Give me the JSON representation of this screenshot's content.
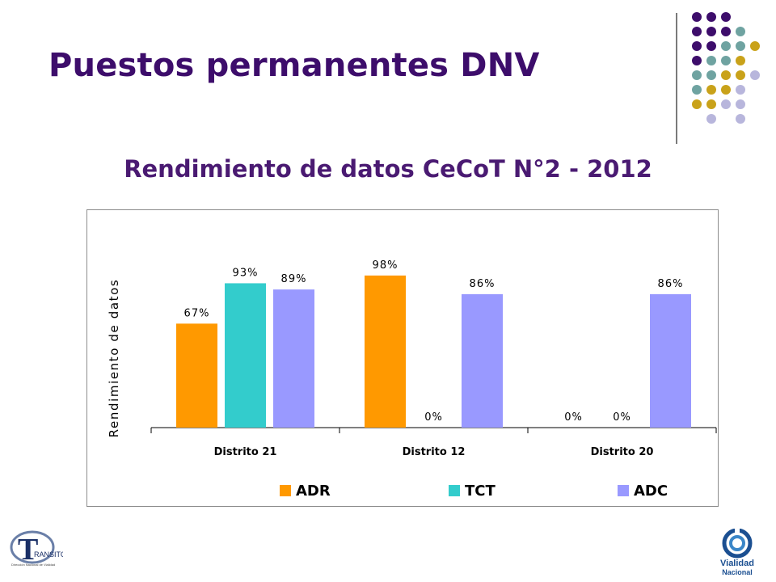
{
  "slide": {
    "title": "Puestos permanentes DNV"
  },
  "colors": {
    "title": "#3d0d6b",
    "dot_purple": "#3d0d6b",
    "dot_teal": "#6fa3a1",
    "dot_gold": "#c9a21a",
    "dot_lavender": "#b8b6dc"
  },
  "decor": {
    "dot_grid_rows": [
      [
        "purple",
        "purple",
        "purple",
        null,
        null
      ],
      [
        "purple",
        "purple",
        "purple",
        "teal",
        null
      ],
      [
        "purple",
        "purple",
        "teal",
        "teal",
        "gold"
      ],
      [
        "purple",
        "teal",
        "teal",
        "gold",
        null
      ],
      [
        "teal",
        "teal",
        "gold",
        "gold",
        "lavender"
      ],
      [
        "teal",
        "gold",
        "gold",
        "lavender",
        null
      ],
      [
        "gold",
        "gold",
        "lavender",
        "lavender",
        null
      ],
      [
        null,
        "lavender",
        null,
        "lavender",
        null
      ]
    ]
  },
  "logos": {
    "left": {
      "name": "transito-logo",
      "text": "RANSITO",
      "letter": "T",
      "caption": "Dirección Nacional de Vialidad"
    },
    "right": {
      "name": "vialidad-nacional-logo",
      "text_line1": "Vialidad",
      "text_line2": "Nacional"
    }
  },
  "chart_data": {
    "type": "bar",
    "title": "Rendimiento de datos CeCoT N°2 - 2012",
    "xlabel": "",
    "ylabel": "Rendimiento de datos",
    "categories": [
      "Distrito 21",
      "Distrito 12",
      "Distrito 20"
    ],
    "series": [
      {
        "name": "ADR",
        "color": "#ff9900",
        "values": [
          67,
          98,
          0
        ],
        "labels": [
          "67%",
          "98%",
          ""
        ]
      },
      {
        "name": "TCT",
        "color": "#33cccc",
        "values": [
          93,
          0,
          0
        ],
        "labels": [
          "93%",
          "0%",
          "0%"
        ]
      },
      {
        "name": "ADC",
        "color": "#9999ff",
        "values": [
          89,
          86,
          86
        ],
        "labels": [
          "89%",
          "86%",
          "86%"
        ]
      }
    ],
    "extra_labels": [
      {
        "category": 2,
        "series": 0,
        "text": "0%"
      }
    ],
    "ylim": [
      0,
      100
    ],
    "grid": false,
    "legend": "bottom",
    "y_axis_visible": false,
    "unit": "%"
  }
}
